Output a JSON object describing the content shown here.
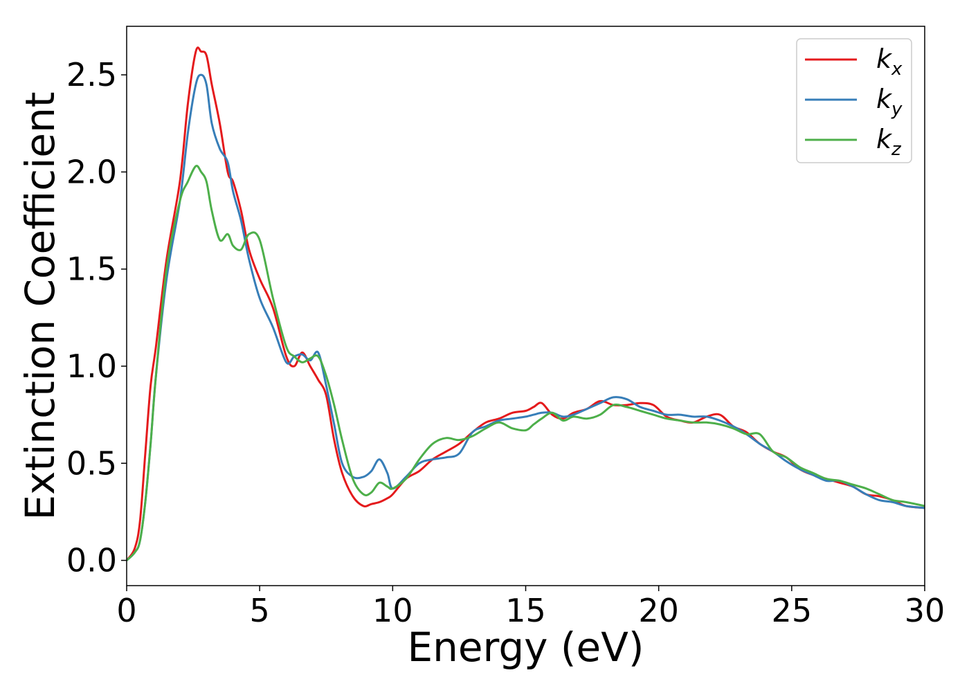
{
  "chart_data": {
    "type": "line",
    "title": "",
    "xlabel": "Energy (eV)",
    "ylabel": "Extinction Coefficient",
    "xlim": [
      0,
      30
    ],
    "ylim": [
      -0.13,
      2.75
    ],
    "xticks": [
      0,
      5,
      10,
      15,
      20,
      25,
      30
    ],
    "xtick_labels": [
      "0",
      "5",
      "10",
      "15",
      "20",
      "25",
      "30"
    ],
    "yticks": [
      0.0,
      0.5,
      1.0,
      1.5,
      2.0,
      2.5
    ],
    "ytick_labels": [
      "0.0",
      "0.5",
      "1.0",
      "1.5",
      "2.0",
      "2.5"
    ],
    "grid": false,
    "legend": {
      "position": "top-right",
      "entries": [
        {
          "base": "k",
          "sub": "x"
        },
        {
          "base": "k",
          "sub": "y"
        },
        {
          "base": "k",
          "sub": "z"
        }
      ]
    },
    "series": [
      {
        "name": "k_x",
        "color": "#e41a1c",
        "x": [
          0,
          0.3,
          0.5,
          0.7,
          0.9,
          1.1,
          1.5,
          2.0,
          2.3,
          2.6,
          2.8,
          3.0,
          3.2,
          3.5,
          3.8,
          4.0,
          4.3,
          4.6,
          5.0,
          5.5,
          6.0,
          6.3,
          6.6,
          6.9,
          7.2,
          7.5,
          7.8,
          8.1,
          8.5,
          8.9,
          9.2,
          9.5,
          9.8,
          10.0,
          10.5,
          11.0,
          11.5,
          12.0,
          12.5,
          13.0,
          13.5,
          14.0,
          14.5,
          15.0,
          15.3,
          15.6,
          16.0,
          16.4,
          16.8,
          17.3,
          17.8,
          18.3,
          18.8,
          19.3,
          19.8,
          20.3,
          20.8,
          21.3,
          21.8,
          22.3,
          22.8,
          23.3,
          23.8,
          24.3,
          24.8,
          25.3,
          25.8,
          26.3,
          26.8,
          27.3,
          27.8,
          28.3,
          28.8,
          29.3,
          30.0
        ],
        "values": [
          0,
          0.06,
          0.2,
          0.55,
          0.9,
          1.1,
          1.55,
          1.95,
          2.35,
          2.62,
          2.62,
          2.6,
          2.45,
          2.25,
          2.0,
          1.95,
          1.8,
          1.6,
          1.45,
          1.3,
          1.05,
          1.0,
          1.07,
          1.0,
          0.93,
          0.85,
          0.62,
          0.45,
          0.33,
          0.28,
          0.29,
          0.3,
          0.32,
          0.34,
          0.42,
          0.46,
          0.52,
          0.56,
          0.6,
          0.66,
          0.71,
          0.73,
          0.76,
          0.77,
          0.79,
          0.81,
          0.75,
          0.73,
          0.76,
          0.78,
          0.82,
          0.8,
          0.8,
          0.81,
          0.8,
          0.74,
          0.72,
          0.71,
          0.74,
          0.75,
          0.69,
          0.66,
          0.6,
          0.56,
          0.53,
          0.47,
          0.44,
          0.42,
          0.4,
          0.38,
          0.34,
          0.33,
          0.31,
          0.28,
          0.27
        ]
      },
      {
        "name": "k_y",
        "color": "#377eb8",
        "x": [
          0,
          0.3,
          0.5,
          0.7,
          0.9,
          1.1,
          1.5,
          2.0,
          2.3,
          2.6,
          2.8,
          3.0,
          3.2,
          3.5,
          3.8,
          4.0,
          4.3,
          4.6,
          5.0,
          5.5,
          6.0,
          6.3,
          6.6,
          6.9,
          7.2,
          7.5,
          7.8,
          8.1,
          8.5,
          8.9,
          9.2,
          9.5,
          9.8,
          10.0,
          10.5,
          11.0,
          11.5,
          12.0,
          12.5,
          13.0,
          13.5,
          14.0,
          14.5,
          15.0,
          15.3,
          15.6,
          16.0,
          16.4,
          16.8,
          17.3,
          17.8,
          18.3,
          18.8,
          19.3,
          19.8,
          20.3,
          20.8,
          21.3,
          21.8,
          22.3,
          22.8,
          23.3,
          23.8,
          24.3,
          24.8,
          25.3,
          25.8,
          26.3,
          26.8,
          27.3,
          27.8,
          28.3,
          28.8,
          29.3,
          30.0
        ],
        "values": [
          0,
          0.04,
          0.1,
          0.3,
          0.6,
          0.95,
          1.45,
          1.85,
          2.2,
          2.45,
          2.5,
          2.45,
          2.25,
          2.12,
          2.05,
          1.9,
          1.75,
          1.55,
          1.35,
          1.2,
          1.02,
          1.05,
          1.06,
          1.03,
          1.07,
          0.9,
          0.7,
          0.5,
          0.43,
          0.43,
          0.46,
          0.52,
          0.45,
          0.37,
          0.43,
          0.5,
          0.52,
          0.53,
          0.55,
          0.66,
          0.69,
          0.72,
          0.73,
          0.74,
          0.75,
          0.76,
          0.76,
          0.74,
          0.75,
          0.78,
          0.81,
          0.84,
          0.83,
          0.79,
          0.77,
          0.75,
          0.75,
          0.74,
          0.74,
          0.72,
          0.69,
          0.65,
          0.6,
          0.56,
          0.51,
          0.47,
          0.44,
          0.41,
          0.41,
          0.38,
          0.34,
          0.31,
          0.3,
          0.28,
          0.27
        ]
      },
      {
        "name": "k_z",
        "color": "#4daf4a",
        "x": [
          0,
          0.3,
          0.5,
          0.7,
          0.9,
          1.1,
          1.5,
          2.0,
          2.3,
          2.6,
          2.8,
          3.0,
          3.2,
          3.5,
          3.8,
          4.0,
          4.3,
          4.6,
          5.0,
          5.5,
          6.0,
          6.3,
          6.6,
          6.9,
          7.2,
          7.5,
          7.8,
          8.1,
          8.5,
          8.9,
          9.2,
          9.5,
          9.8,
          10.0,
          10.5,
          11.0,
          11.5,
          12.0,
          12.5,
          13.0,
          13.5,
          14.0,
          14.5,
          15.0,
          15.3,
          15.6,
          16.0,
          16.4,
          16.8,
          17.3,
          17.8,
          18.3,
          18.8,
          19.3,
          19.8,
          20.3,
          20.8,
          21.3,
          21.8,
          22.3,
          22.8,
          23.3,
          23.8,
          24.3,
          24.8,
          25.3,
          25.8,
          26.3,
          26.8,
          27.3,
          27.8,
          28.3,
          28.8,
          29.3,
          30.0
        ],
        "values": [
          0,
          0.04,
          0.1,
          0.3,
          0.6,
          0.95,
          1.5,
          1.85,
          1.95,
          2.03,
          2.0,
          1.95,
          1.8,
          1.65,
          1.68,
          1.62,
          1.6,
          1.68,
          1.65,
          1.35,
          1.1,
          1.05,
          1.02,
          1.04,
          1.05,
          0.95,
          0.8,
          0.62,
          0.42,
          0.34,
          0.35,
          0.4,
          0.38,
          0.37,
          0.42,
          0.52,
          0.6,
          0.63,
          0.62,
          0.64,
          0.68,
          0.71,
          0.68,
          0.67,
          0.7,
          0.73,
          0.76,
          0.72,
          0.74,
          0.73,
          0.75,
          0.8,
          0.79,
          0.77,
          0.75,
          0.73,
          0.72,
          0.71,
          0.71,
          0.7,
          0.68,
          0.65,
          0.65,
          0.56,
          0.53,
          0.48,
          0.45,
          0.42,
          0.41,
          0.39,
          0.37,
          0.34,
          0.31,
          0.3,
          0.28
        ]
      }
    ]
  }
}
